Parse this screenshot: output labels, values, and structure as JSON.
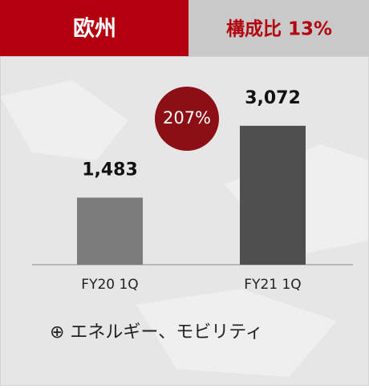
{
  "chart_data": {
    "type": "bar",
    "title": "欧州",
    "subtitle": "構成比 13%",
    "categories": [
      "FY20 1Q",
      "FY21 1Q"
    ],
    "values": [
      1483,
      3072
    ],
    "value_labels": [
      "1,483",
      "3,072"
    ],
    "colors": [
      "#7b7b7b",
      "#4f4f4f"
    ],
    "ylim": [
      0,
      3300
    ],
    "annotation": "207%",
    "note": "⊕ エネルギー、モビリティ"
  }
}
